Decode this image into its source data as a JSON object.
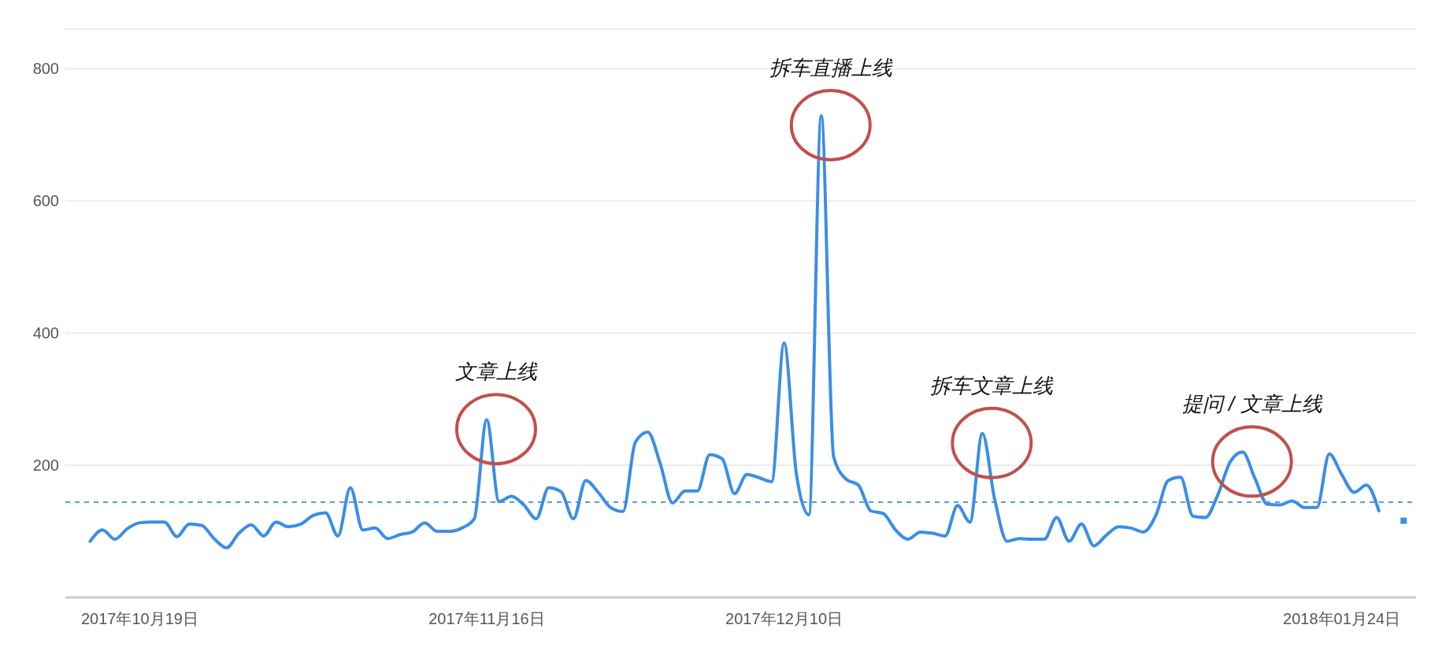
{
  "chart_data": {
    "type": "line",
    "x": [
      "2017-10-15",
      "2017-10-16",
      "2017-10-17",
      "2017-10-18",
      "2017-10-19",
      "2017-10-20",
      "2017-10-21",
      "2017-10-22",
      "2017-10-23",
      "2017-10-24",
      "2017-10-25",
      "2017-10-26",
      "2017-10-27",
      "2017-10-28",
      "2017-10-29",
      "2017-10-30",
      "2017-10-31",
      "2017-11-01",
      "2017-11-02",
      "2017-11-03",
      "2017-11-04",
      "2017-11-05",
      "2017-11-06",
      "2017-11-07",
      "2017-11-08",
      "2017-11-09",
      "2017-11-10",
      "2017-11-11",
      "2017-11-12",
      "2017-11-13",
      "2017-11-14",
      "2017-11-15",
      "2017-11-16",
      "2017-11-17",
      "2017-11-18",
      "2017-11-19",
      "2017-11-20",
      "2017-11-21",
      "2017-11-22",
      "2017-11-23",
      "2017-11-24",
      "2017-11-25",
      "2017-11-26",
      "2017-11-27",
      "2017-11-28",
      "2017-11-29",
      "2017-11-30",
      "2017-12-01",
      "2017-12-02",
      "2017-12-03",
      "2017-12-04",
      "2017-12-05",
      "2017-12-06",
      "2017-12-07",
      "2017-12-08",
      "2017-12-09",
      "2017-12-10",
      "2017-12-11",
      "2017-12-12",
      "2017-12-13",
      "2017-12-14",
      "2017-12-15",
      "2017-12-16",
      "2017-12-17",
      "2017-12-18",
      "2017-12-19",
      "2017-12-20",
      "2017-12-21",
      "2017-12-22",
      "2017-12-23",
      "2017-12-24",
      "2017-12-25",
      "2017-12-26",
      "2017-12-27",
      "2017-12-28",
      "2017-12-29",
      "2017-12-30",
      "2017-12-31",
      "2018-01-01",
      "2018-01-02",
      "2018-01-03",
      "2018-01-04",
      "2018-01-05",
      "2018-01-06",
      "2018-01-07",
      "2018-01-08",
      "2018-01-09",
      "2018-01-10",
      "2018-01-11",
      "2018-01-12",
      "2018-01-13",
      "2018-01-14",
      "2018-01-15",
      "2018-01-16",
      "2018-01-17",
      "2018-01-18",
      "2018-01-19",
      "2018-01-20",
      "2018-01-21",
      "2018-01-22",
      "2018-01-23",
      "2018-01-24",
      "2018-01-25",
      "2018-01-26",
      "2018-01-27",
      "2018-01-28",
      "2018-01-29"
    ],
    "values": [
      85,
      102,
      88,
      104,
      113,
      114,
      114,
      92,
      111,
      109,
      89,
      75,
      97,
      110,
      93,
      114,
      107,
      111,
      124,
      128,
      93,
      166,
      102,
      105,
      89,
      95,
      99,
      113,
      100,
      100,
      105,
      119,
      269,
      145,
      153,
      140,
      119,
      166,
      160,
      119,
      177,
      159,
      136,
      130,
      235,
      250,
      203,
      143,
      161,
      161,
      216,
      210,
      157,
      186,
      181,
      175,
      385,
      186,
      125,
      729,
      213,
      179,
      170,
      131,
      127,
      102,
      88,
      99,
      97,
      93,
      139,
      114,
      248,
      148,
      85,
      89,
      88,
      88,
      121,
      85,
      111,
      78,
      94,
      107,
      105,
      99,
      124,
      177,
      182,
      123,
      121,
      155,
      205,
      220,
      180,
      141,
      140,
      146,
      136,
      136,
      217,
      186,
      159,
      170,
      131,
      null,
      116
    ],
    "color": "#3a8ee6",
    "xlim": [
      "2017-10-13",
      "2018-01-30"
    ],
    "xticks": [
      {
        "value": "2017-10-19",
        "label": "2017年10月19日"
      },
      {
        "value": "2017-11-16",
        "label": "2017年11月16日"
      },
      {
        "value": "2017-12-10",
        "label": "2017年12月10日"
      },
      {
        "value": "2018-01-24",
        "label": "2018年01月24日"
      }
    ],
    "ylim": [
      0,
      860
    ],
    "yticks": [
      200,
      400,
      600,
      800
    ],
    "grid": "y",
    "ref_lines": [
      {
        "axis": "y",
        "value": 144,
        "color": "#5b9bd5",
        "line_style": "dashed"
      }
    ],
    "annotations": [
      {
        "text": "文章上线",
        "x": "2017-11-16",
        "y": 269
      },
      {
        "text": "拆车直播上线",
        "x": "2017-12-13",
        "y": 729
      },
      {
        "text": "拆车文章上线",
        "x": "2017-12-26",
        "y": 248
      },
      {
        "text": "提问 / 文章上线",
        "x": "2018-01-16",
        "y": 220
      }
    ]
  }
}
